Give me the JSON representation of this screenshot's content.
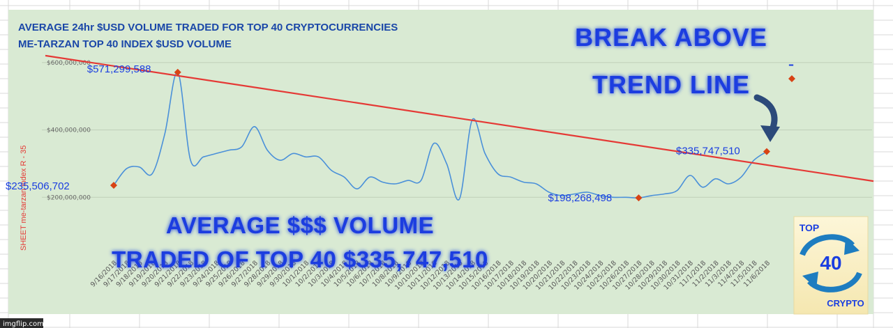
{
  "chart_data": {
    "type": "line",
    "title": "AVERAGE 24hr $USD VOLUME TRADED FOR TOP 40 CRYPTOCURRENCIES",
    "subtitle": "ME-TARZAN TOP 40 INDEX $USD VOLUME",
    "ylabel": "SHEET me-tarzan index   R - 35",
    "xlabel": "",
    "ylim": [
      0,
      600000000
    ],
    "yticks": [
      "$200,000,000",
      "$400,000,000",
      "$600,000,000"
    ],
    "ytick_values": [
      200000000,
      400000000,
      600000000
    ],
    "grid": true,
    "categories": [
      "9/16/2018",
      "9/17/2018",
      "9/18/2018",
      "9/19/2018",
      "9/20/2018",
      "9/21/2018",
      "9/22/2018",
      "9/23/2018",
      "9/24/2018",
      "9/25/2018",
      "9/26/2018",
      "9/27/2018",
      "9/28/2018",
      "9/29/2018",
      "9/30/2018",
      "10/1/2018",
      "10/2/2018",
      "10/3/2018",
      "10/4/2018",
      "10/5/2018",
      "10/6/2018",
      "10/7/2018",
      "10/8/2018",
      "10/9/2018",
      "10/10/2018",
      "10/11/2018",
      "10/12/2018",
      "10/13/2018",
      "10/14/2018",
      "10/15/2018",
      "10/16/2018",
      "10/17/2018",
      "10/18/2018",
      "10/19/2018",
      "10/20/2018",
      "10/21/2018",
      "10/22/2018",
      "10/23/2018",
      "10/24/2018",
      "10/25/2018",
      "10/26/2018",
      "10/27/2018",
      "10/28/2018",
      "10/29/2018",
      "10/30/2018",
      "10/31/2018",
      "11/1/2018",
      "11/2/2018",
      "11/3/2018",
      "11/4/2018",
      "11/5/2018",
      "11/6/2018"
    ],
    "series": [
      {
        "values": [
          235506702,
          285000000,
          290000000,
          270000000,
          390000000,
          571299588,
          310000000,
          320000000,
          330000000,
          340000000,
          350000000,
          410000000,
          340000000,
          310000000,
          330000000,
          320000000,
          320000000,
          280000000,
          260000000,
          225000000,
          260000000,
          245000000,
          240000000,
          250000000,
          250000000,
          360000000,
          300000000,
          195000000,
          430000000,
          330000000,
          270000000,
          260000000,
          245000000,
          240000000,
          215000000,
          205000000,
          210000000,
          215000000,
          205000000,
          200000000,
          200000000,
          198268498,
          205000000,
          210000000,
          220000000,
          265000000,
          230000000,
          255000000,
          240000000,
          260000000,
          310000000,
          335747510
        ]
      }
    ],
    "trend_line": {
      "start": 590000000,
      "end": 296000000
    },
    "highlight_points": [
      {
        "index": 0,
        "label": "$235,506,702"
      },
      {
        "index": 5,
        "label": "$571,299,588"
      },
      {
        "index": 41,
        "label": "$198,268,498"
      },
      {
        "index": 51,
        "label": "$335,747,510"
      }
    ],
    "colors": {
      "line": "#4a90d9",
      "trend": "#e53935",
      "marker": "#d84315",
      "label": "#1a3ee0",
      "background": "#d9ead3"
    }
  },
  "overlay": {
    "callout_line1": "BREAK  ABOVE",
    "callout_line2": "TREND LINE",
    "caption_line1": "AVERAGE $$$ VOLUME",
    "caption_line2": "TRADED OF TOP 40  $335,747,510",
    "legend_dash": "–"
  },
  "logo": {
    "top": "TOP",
    "number": "40",
    "bottom": "CRYPTO"
  },
  "watermark": "imgflip.com"
}
